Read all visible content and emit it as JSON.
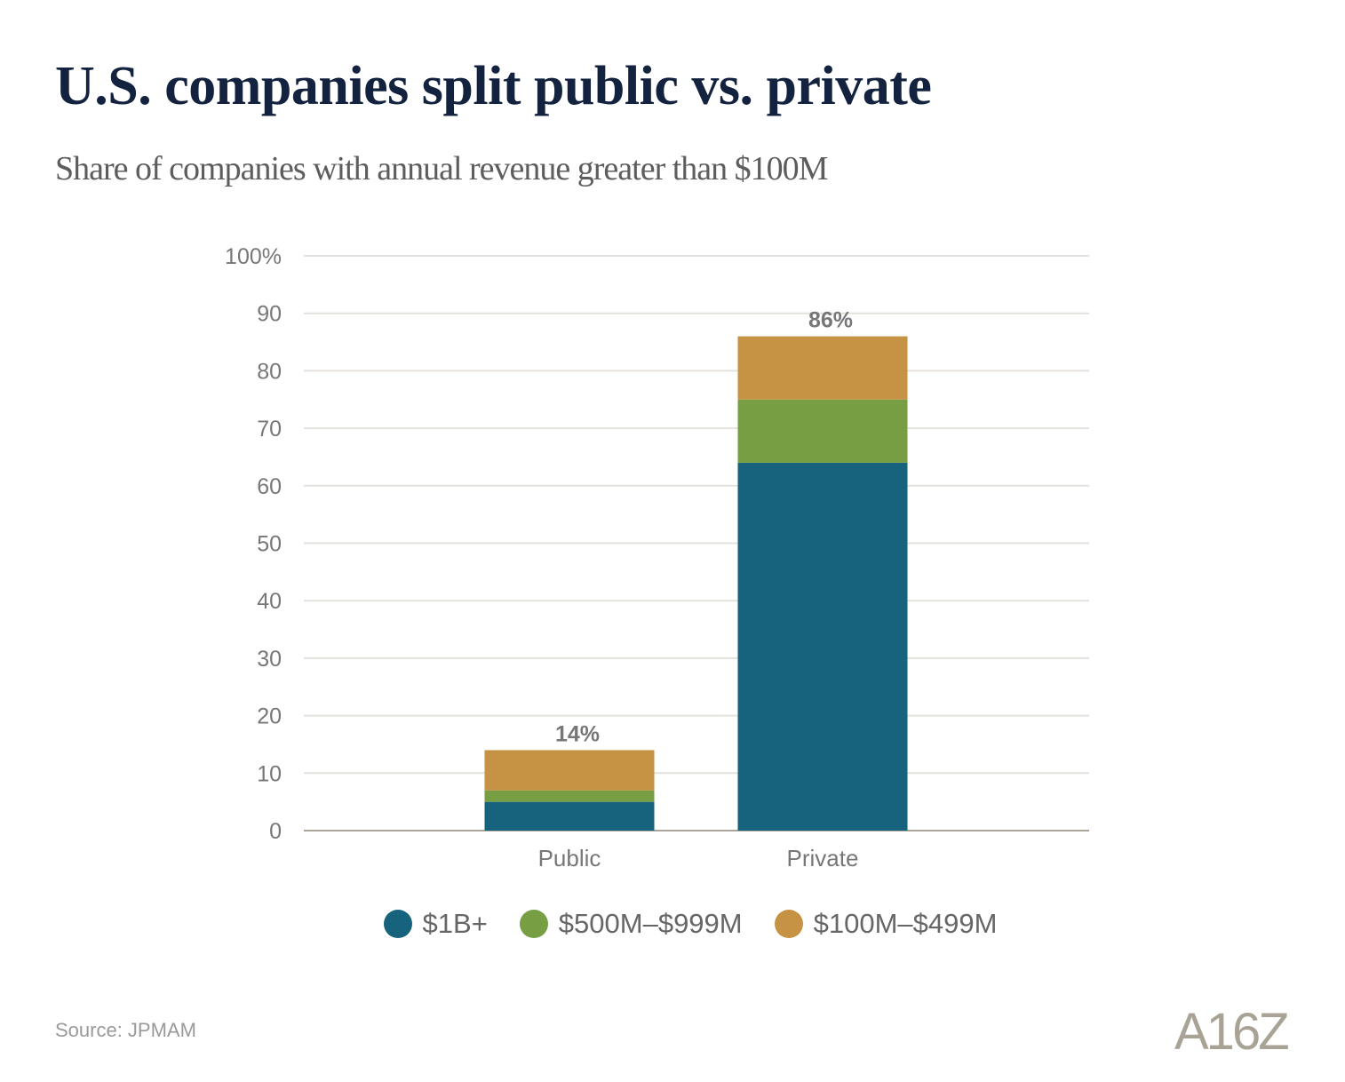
{
  "chart_data": {
    "type": "bar",
    "stacked": true,
    "title": "U.S. companies split public vs. private",
    "subtitle": "Share of companies with annual revenue greater than $100M",
    "categories": [
      "Public",
      "Private"
    ],
    "series": [
      {
        "name": "$1B+",
        "color": "#17627c",
        "values": [
          5,
          64
        ]
      },
      {
        "name": "$500M–$999M",
        "color": "#789e43",
        "values": [
          2,
          11
        ]
      },
      {
        "name": "$100M–$499M",
        "color": "#c69244",
        "values": [
          7,
          11
        ]
      }
    ],
    "totals_labels": [
      "14%",
      "86%"
    ],
    "ylim": [
      0,
      100
    ],
    "yticks": [
      0,
      10,
      20,
      30,
      40,
      50,
      60,
      70,
      80,
      90,
      100
    ],
    "ytick_labels": [
      "0",
      "10",
      "20",
      "30",
      "40",
      "50",
      "60",
      "70",
      "80",
      "90",
      "100%"
    ],
    "grid": true,
    "legend_position": "bottom",
    "source": "Source: JPMAM",
    "logo": "A16Z"
  }
}
